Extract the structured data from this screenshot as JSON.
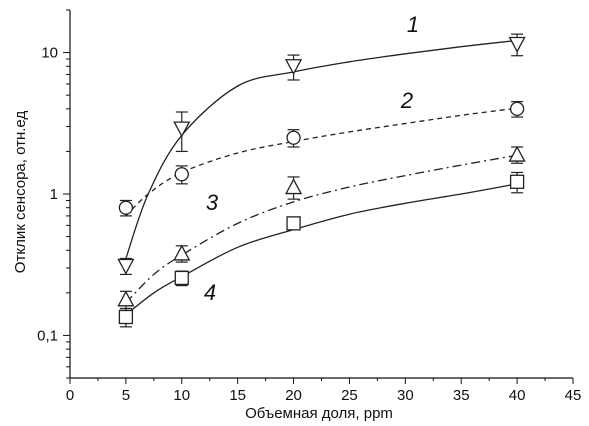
{
  "chart_data": {
    "type": "scatter",
    "title": "",
    "xlabel": "Объемная доля, ppm",
    "ylabel": "Отклик сенсора, отн.ед",
    "xlim": [
      0,
      45
    ],
    "ylim": [
      0.05,
      20
    ],
    "yscale": "log",
    "x_ticks": [
      "0",
      "5",
      "10",
      "15",
      "20",
      "25",
      "30",
      "35",
      "40",
      "45"
    ],
    "x_tick_values": [
      0,
      5,
      10,
      15,
      20,
      25,
      30,
      35,
      40,
      45
    ],
    "y_ticks": [
      "0,1",
      "1",
      "10"
    ],
    "y_tick_values": [
      0.1,
      1,
      10
    ],
    "grid": false,
    "legend": "none",
    "series": [
      {
        "label": "1",
        "marker": "triangle-down",
        "line": "solid",
        "x": [
          5,
          10,
          20,
          40
        ],
        "y": [
          0.31,
          2.9,
          8.0,
          11.5
        ],
        "err": [
          0.04,
          0.9,
          1.6,
          2.0
        ],
        "fit": [
          [
            5,
            0.35
          ],
          [
            7,
            1.0
          ],
          [
            10,
            2.6
          ],
          [
            15,
            5.8
          ],
          [
            20,
            7.3
          ],
          [
            25,
            8.6
          ],
          [
            30,
            9.8
          ],
          [
            35,
            11.0
          ],
          [
            40,
            12.2
          ]
        ]
      },
      {
        "label": "2",
        "marker": "circle",
        "line": "dashed",
        "x": [
          5,
          10,
          20,
          40
        ],
        "y": [
          0.8,
          1.38,
          2.5,
          4.0
        ],
        "err": [
          0.1,
          0.2,
          0.35,
          0.5
        ],
        "fit": [
          [
            5,
            0.7
          ],
          [
            7,
            1.0
          ],
          [
            10,
            1.42
          ],
          [
            15,
            1.95
          ],
          [
            20,
            2.35
          ],
          [
            25,
            2.75
          ],
          [
            30,
            3.15
          ],
          [
            35,
            3.6
          ],
          [
            40,
            4.05
          ]
        ]
      },
      {
        "label": "3",
        "marker": "triangle-up",
        "line": "dashdot",
        "x": [
          5,
          10,
          20,
          40
        ],
        "y": [
          0.18,
          0.38,
          1.12,
          1.9
        ],
        "err": [
          0.025,
          0.05,
          0.2,
          0.25
        ],
        "fit": [
          [
            5,
            0.17
          ],
          [
            7.5,
            0.27
          ],
          [
            10,
            0.37
          ],
          [
            15,
            0.62
          ],
          [
            20,
            0.88
          ],
          [
            25,
            1.12
          ],
          [
            30,
            1.35
          ],
          [
            35,
            1.6
          ],
          [
            40,
            1.88
          ]
        ]
      },
      {
        "label": "4",
        "marker": "square",
        "line": "solid",
        "x": [
          5,
          10,
          20,
          40
        ],
        "y": [
          0.135,
          0.255,
          0.62,
          1.22
        ],
        "err": [
          0.02,
          0.03,
          0.06,
          0.2
        ],
        "fit": [
          [
            5,
            0.14
          ],
          [
            7.5,
            0.2
          ],
          [
            10,
            0.26
          ],
          [
            15,
            0.42
          ],
          [
            20,
            0.56
          ],
          [
            25,
            0.72
          ],
          [
            30,
            0.86
          ],
          [
            35,
            1.0
          ],
          [
            40,
            1.18
          ]
        ]
      }
    ]
  }
}
